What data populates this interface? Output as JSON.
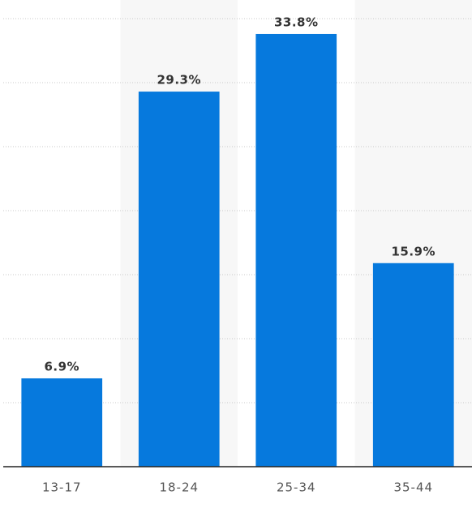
{
  "chart_data": {
    "type": "bar",
    "categories": [
      "13-17",
      "18-24",
      "25-34",
      "35-44"
    ],
    "values": [
      6.9,
      29.3,
      33.8,
      15.9
    ],
    "value_labels": [
      "6.9%",
      "29.3%",
      "33.8%",
      "15.9%"
    ],
    "color": "#0679dd",
    "ylim": [
      0,
      35
    ],
    "yticks": [
      5,
      10,
      15,
      20,
      25,
      30,
      35
    ],
    "grid": true
  }
}
